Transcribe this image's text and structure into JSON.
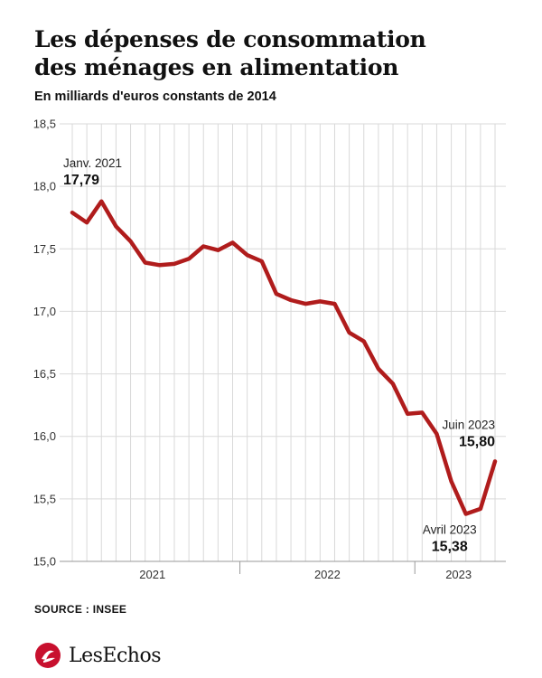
{
  "title_line1": "Les dépenses de consommation",
  "title_line2": "des ménages en alimentation",
  "subtitle": "En milliards d'euros constants de 2014",
  "source": "SOURCE : INSEE",
  "brand": "LesEchos",
  "colors": {
    "line": "#b01c1c",
    "grid": "#d9d9d9",
    "axis": "#999999",
    "logo": "#c8102e"
  },
  "chart_data": {
    "type": "line",
    "title": "Les dépenses de consommation des ménages en alimentation",
    "ylabel": "En milliards d'euros constants de 2014",
    "ylim": [
      15.0,
      18.5
    ],
    "yticks": [
      15.0,
      15.5,
      16.0,
      16.5,
      17.0,
      17.5,
      18.0,
      18.5
    ],
    "ytick_labels": [
      "15,0",
      "15,5",
      "16,0",
      "16,5",
      "17,0",
      "17,5",
      "18,0",
      "18,5"
    ],
    "x_start": "2021-01",
    "x_end": "2023-06",
    "year_labels": [
      {
        "label": "2021",
        "from": "2021-01",
        "to": "2021-12"
      },
      {
        "label": "2022",
        "from": "2022-01",
        "to": "2022-12"
      },
      {
        "label": "2023",
        "from": "2023-01",
        "to": "2023-06"
      }
    ],
    "grid": true,
    "series": [
      {
        "x": [
          "2021-01",
          "2021-02",
          "2021-03",
          "2021-04",
          "2021-05",
          "2021-06",
          "2021-07",
          "2021-08",
          "2021-09",
          "2021-10",
          "2021-11",
          "2021-12",
          "2022-01",
          "2022-02",
          "2022-03",
          "2022-04",
          "2022-05",
          "2022-06",
          "2022-07",
          "2022-08",
          "2022-09",
          "2022-10",
          "2022-11",
          "2022-12",
          "2023-01",
          "2023-02",
          "2023-03",
          "2023-04",
          "2023-05",
          "2023-06"
        ],
        "values": [
          17.79,
          17.71,
          17.88,
          17.68,
          17.56,
          17.39,
          17.37,
          17.38,
          17.42,
          17.52,
          17.49,
          17.55,
          17.45,
          17.4,
          17.14,
          17.09,
          17.06,
          17.08,
          17.06,
          16.83,
          16.76,
          16.54,
          16.42,
          16.18,
          16.19,
          16.02,
          15.64,
          15.38,
          15.42,
          15.8
        ]
      }
    ],
    "annotations": [
      {
        "label": "Janv. 2021",
        "value_label": "17,79"
      },
      {
        "label": "Avril 2023",
        "value_label": "15,38"
      },
      {
        "label": "Juin 2023",
        "value_label": "15,80"
      }
    ]
  }
}
